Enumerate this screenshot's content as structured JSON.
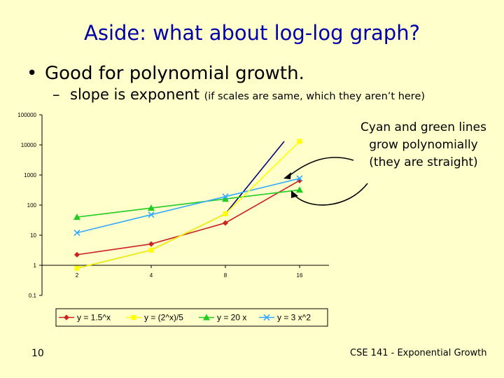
{
  "slide": {
    "title": "Aside: what about log-log graph?",
    "bullet": "Good for polynomial growth.",
    "sub_main": "slope is exponent",
    "sub_note": "(if scales are same, which they aren’t here)",
    "callout": [
      "Cyan and green lines",
      "grow polynomially",
      "(they are straight)"
    ],
    "page_number": "10",
    "footer": "CSE 141 - Exponential Growth"
  },
  "colors": {
    "background": "#FFFFCC",
    "title": "#0000AA",
    "red": "#CC2222",
    "yellow": "#FFFF00",
    "green": "#22CC22",
    "cyan": "#33AAFF",
    "navy": "#000080"
  },
  "chart_data": {
    "type": "line",
    "x_scale": "log",
    "y_scale": "log",
    "categories": [
      "2",
      "4",
      "8",
      "16"
    ],
    "x": [
      2,
      4,
      8,
      16
    ],
    "y_ticks": [
      "100000",
      "10000",
      "1000",
      "100",
      "10",
      "1",
      "0.1"
    ],
    "ylim": [
      0.1,
      100000
    ],
    "legend_position": "bottom",
    "series": [
      {
        "name": "y = 1.5^x",
        "color": "#CC2222",
        "marker": "diamond",
        "values": [
          2.25,
          5.1,
          25.6,
          657
        ]
      },
      {
        "name": "y = (2^x)/5",
        "color": "#FFFF00",
        "marker": "square",
        "values": [
          0.8,
          3.2,
          51.2,
          13107
        ]
      },
      {
        "name": "y = 20 x",
        "color": "#22CC22",
        "marker": "triangle",
        "values": [
          40,
          80,
          160,
          320
        ]
      },
      {
        "name": "y = 3 x^2",
        "color": "#33AAFF",
        "marker": "x",
        "values": [
          12,
          48,
          192,
          768
        ]
      },
      {
        "name": "",
        "color": "#000080",
        "marker": "none",
        "values": [
          0.8,
          3.2,
          51.2,
          13107
        ]
      }
    ]
  }
}
